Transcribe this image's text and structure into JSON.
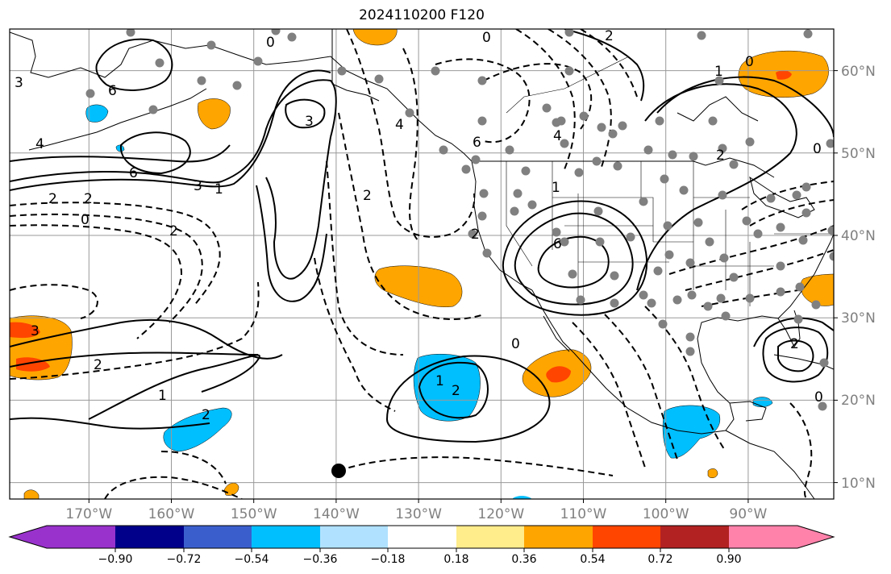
{
  "title": "2024110200 F120",
  "map": {
    "projection": "PlateCarree",
    "lon_range": [
      -180,
      -80
    ],
    "lat_range": [
      7,
      64
    ],
    "gridlines": true,
    "lon_ticks": [
      "170°W",
      "160°W",
      "150°W",
      "140°W",
      "130°W",
      "120°W",
      "110°W",
      "100°W",
      "90°W"
    ],
    "lat_ticks": [
      "60°N",
      "50°N",
      "40°N",
      "30°N",
      "20°N",
      "10°N"
    ],
    "land_color": "#ffffff",
    "coastline_color": "#000000",
    "grid_color": "#999999",
    "station_color": "#808080",
    "marker": {
      "lon": -140,
      "lat": 11,
      "color": "#000000"
    }
  },
  "contour_labels": [
    "0",
    "0",
    "1",
    "1",
    "1",
    "2",
    "2",
    "2",
    "2",
    "2",
    "3",
    "3",
    "3",
    "3",
    "4",
    "4",
    "4",
    "6",
    "6",
    "6",
    "6",
    "2",
    "2",
    "0",
    "0",
    "0",
    "1",
    "2",
    "0",
    "2",
    "0",
    "2",
    "1",
    "2"
  ],
  "colorbar": {
    "ticks": [
      "−0.90",
      "−0.72",
      "−0.54",
      "−0.36",
      "−0.18",
      "0.18",
      "0.36",
      "0.54",
      "0.72",
      "0.90"
    ],
    "colors": [
      "#9932cc",
      "#00008b",
      "#3a5fcd",
      "#00bfff",
      "#b0e2ff",
      "#ffffff",
      "#ffec8b",
      "#ffa500",
      "#ff4500",
      "#b22222",
      "#ff82ab"
    ],
    "extend": "both"
  }
}
